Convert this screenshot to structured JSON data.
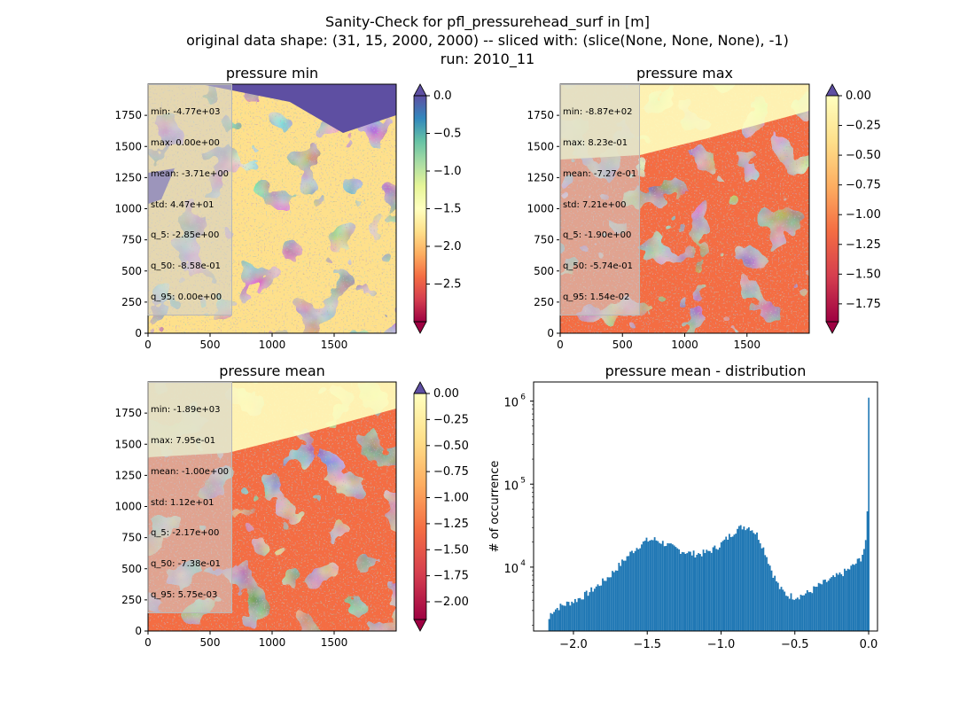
{
  "figure": {
    "title_line1": "Sanity-Check for pfl_pressurehead_surf in [m]",
    "title_line2": "original data shape: (31, 15, 2000, 2000) -- sliced with: (slice(None, None, None), -1)",
    "title_line3": "run: 2010_11"
  },
  "colormap": [
    "#9e0142",
    "#d53e4f",
    "#f46d43",
    "#fdae61",
    "#fee08b",
    "#ffffbf",
    "#e6f598",
    "#abdda4",
    "#66c2a5",
    "#3288bd",
    "#5e4fa2"
  ],
  "panels": [
    {
      "title": "pressure min",
      "cbar_range": [
        -3.0,
        0.0
      ],
      "cbar_ticks": [
        "0.0",
        "−0.5",
        "−1.0",
        "−1.5",
        "−2.0",
        "−2.5"
      ],
      "cbar_tick_values": [
        0.0,
        -0.5,
        -1.0,
        -1.5,
        -2.0,
        -2.5
      ],
      "xticks": [
        "0",
        "500",
        "1000",
        "1500"
      ],
      "yticks": [
        "0",
        "250",
        "500",
        "750",
        "1000",
        "1250",
        "1500",
        "1750"
      ],
      "stats": [
        "min: -4.77e+03",
        "max: 0.00e+00",
        "mean: -3.71e+00",
        "std: 4.47e+01",
        "q_5: -2.85e+00",
        "q_50: -8.58e-01",
        "q_95: 0.00e+00"
      ]
    },
    {
      "title": "pressure max",
      "cbar_range": [
        -1.9,
        0.0
      ],
      "cbar_ticks": [
        "0.00",
        "−0.25",
        "−0.50",
        "−0.75",
        "−1.00",
        "−1.25",
        "−1.50",
        "−1.75"
      ],
      "cbar_tick_values": [
        0.0,
        -0.25,
        -0.5,
        -0.75,
        -1.0,
        -1.25,
        -1.5,
        -1.75
      ],
      "xticks": [
        "0",
        "500",
        "1000",
        "1500"
      ],
      "yticks": [
        "0",
        "250",
        "500",
        "750",
        "1000",
        "1250",
        "1500",
        "1750"
      ],
      "stats": [
        "min: -8.87e+02",
        "max: 8.23e-01",
        "mean: -7.27e-01",
        "std: 7.21e+00",
        "q_5: -1.90e+00",
        "q_50: -5.74e-01",
        "q_95: 1.54e-02"
      ]
    },
    {
      "title": "pressure mean",
      "cbar_range": [
        -2.17,
        0.0
      ],
      "cbar_ticks": [
        "0.00",
        "−0.25",
        "−0.50",
        "−0.75",
        "−1.00",
        "−1.25",
        "−1.50",
        "−1.75",
        "−2.00"
      ],
      "cbar_tick_values": [
        0.0,
        -0.25,
        -0.5,
        -0.75,
        -1.0,
        -1.25,
        -1.5,
        -1.75,
        -2.0
      ],
      "xticks": [
        "0",
        "500",
        "1000",
        "1500"
      ],
      "yticks": [
        "0",
        "250",
        "500",
        "750",
        "1000",
        "1250",
        "1500",
        "1750"
      ],
      "stats": [
        "min: -1.89e+03",
        "max: 7.95e-01",
        "mean: -1.00e+00",
        "std: 1.12e+01",
        "q_5: -2.17e+00",
        "q_50: -7.38e-01",
        "q_95: 5.75e-03"
      ]
    }
  ],
  "chart_data": {
    "type": "bar",
    "title": "pressure mean - distribution",
    "xlabel": "",
    "ylabel": "# of occurrence",
    "yscale": "log",
    "xlim": [
      -2.27,
      0.06
    ],
    "ylim": [
      1700,
      1700000
    ],
    "xticks": [
      "−2.0",
      "−1.5",
      "−1.0",
      "−0.5",
      "0.0"
    ],
    "xtick_values": [
      -2.0,
      -1.5,
      -1.0,
      -0.5,
      0.0
    ],
    "yticks": [
      {
        "base": "10",
        "exp": "4",
        "value": 10000
      },
      {
        "base": "10",
        "exp": "5",
        "value": 100000
      },
      {
        "base": "10",
        "exp": "6",
        "value": 1000000
      }
    ],
    "bar_color": "#1f77b4",
    "bin_width": 0.011,
    "profile_x": [
      -2.17,
      -2.15,
      -2.1,
      -2.05,
      -2.0,
      -1.95,
      -1.9,
      -1.85,
      -1.8,
      -1.75,
      -1.7,
      -1.65,
      -1.6,
      -1.55,
      -1.5,
      -1.45,
      -1.4,
      -1.35,
      -1.3,
      -1.25,
      -1.2,
      -1.15,
      -1.1,
      -1.05,
      -1.0,
      -0.95,
      -0.9,
      -0.85,
      -0.8,
      -0.75,
      -0.7,
      -0.65,
      -0.6,
      -0.55,
      -0.5,
      -0.45,
      -0.4,
      -0.35,
      -0.3,
      -0.25,
      -0.2,
      -0.15,
      -0.1,
      -0.05,
      -0.02,
      -0.01,
      0.0
    ],
    "profile_y": [
      2200,
      2900,
      3300,
      3600,
      3900,
      4300,
      4900,
      5700,
      6700,
      8000,
      10000,
      12500,
      15500,
      18500,
      21000,
      21500,
      20000,
      18000,
      16500,
      15500,
      14500,
      14500,
      15000,
      16500,
      19000,
      23000,
      28000,
      31000,
      30000,
      24000,
      15000,
      8500,
      5500,
      4600,
      4400,
      4600,
      5000,
      5800,
      6500,
      7200,
      8000,
      9000,
      10500,
      13000,
      19000,
      26000,
      1100000
    ]
  }
}
